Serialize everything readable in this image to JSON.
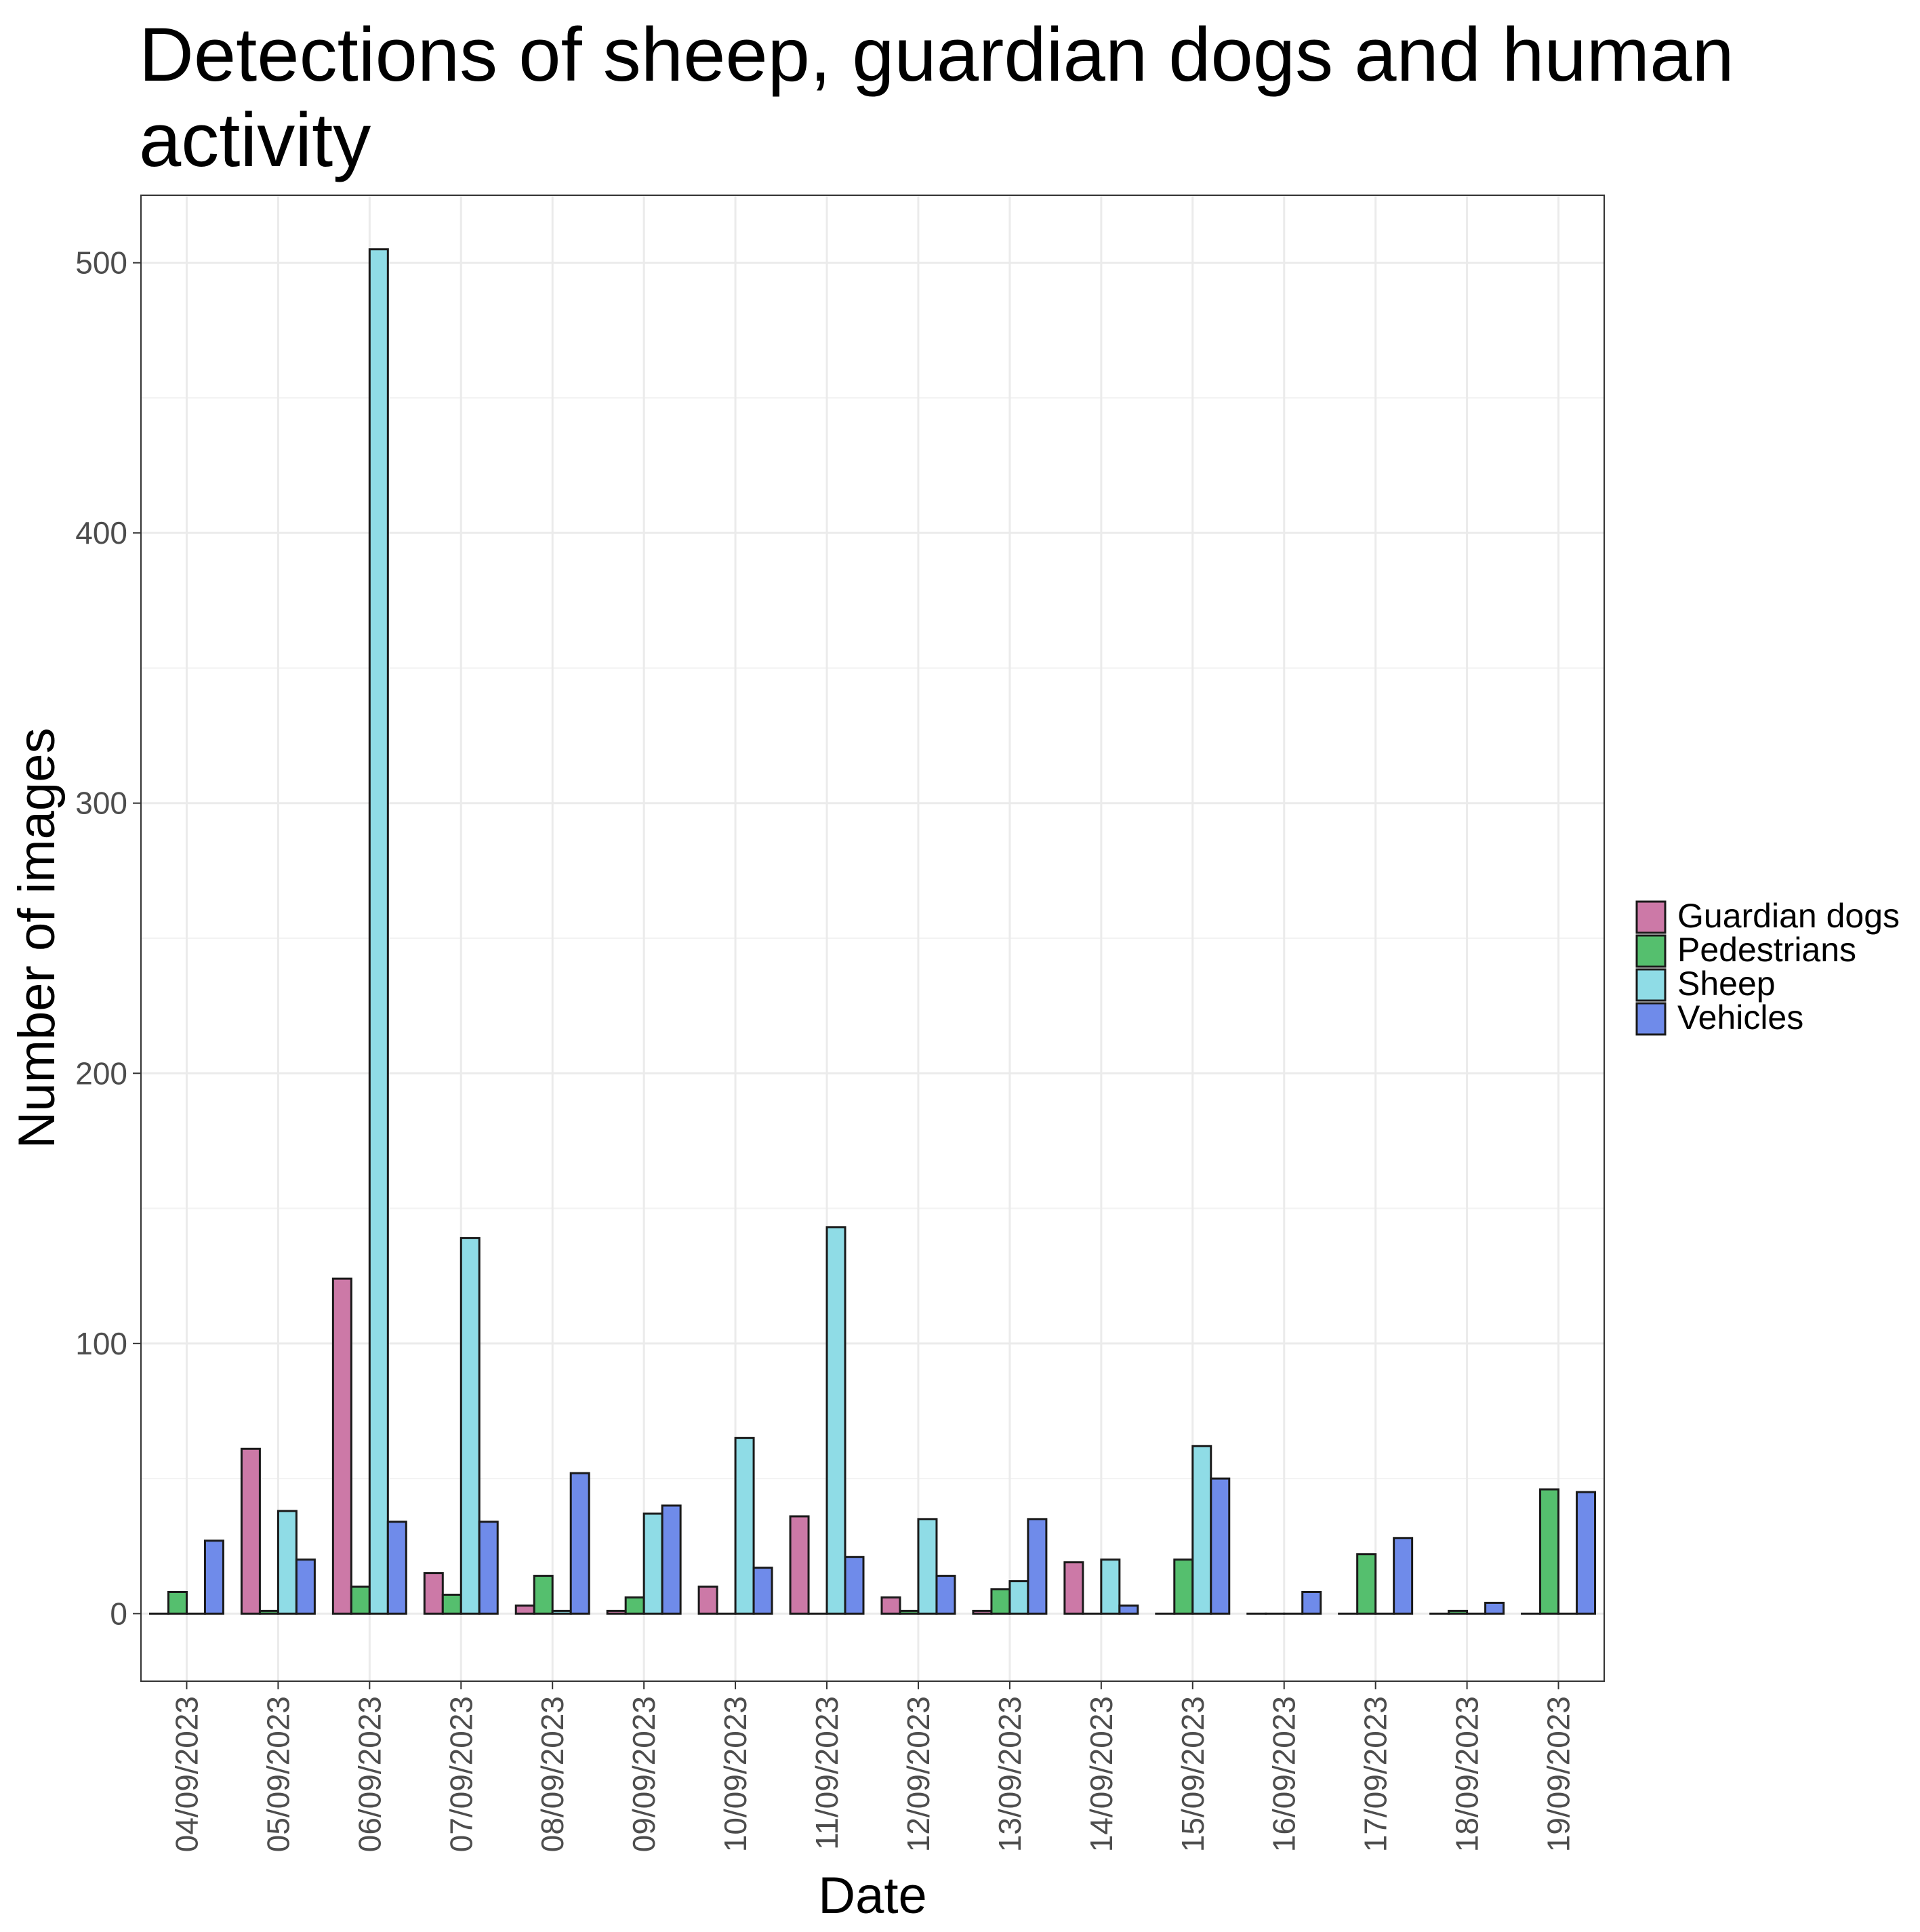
{
  "chart_data": {
    "type": "bar",
    "title": "Detections of sheep, guardian dogs and human activity",
    "xlabel": "Date",
    "ylabel": "Number of images",
    "ylim": [
      -25,
      525
    ],
    "yticks": [
      0,
      100,
      200,
      300,
      400,
      500
    ],
    "grid": true,
    "legend_position": "right",
    "categories": [
      "04/09/2023",
      "05/09/2023",
      "06/09/2023",
      "07/09/2023",
      "08/09/2023",
      "09/09/2023",
      "10/09/2023",
      "11/09/2023",
      "12/09/2023",
      "13/09/2023",
      "14/09/2023",
      "15/09/2023",
      "16/09/2023",
      "17/09/2023",
      "18/09/2023",
      "19/09/2023"
    ],
    "series": [
      {
        "name": "Guardian dogs",
        "color": "#CC79A7",
        "values": [
          0,
          61,
          124,
          15,
          3,
          1,
          10,
          36,
          6,
          1,
          19,
          0,
          0,
          0,
          0,
          0
        ]
      },
      {
        "name": "Pedestrians",
        "color": "#55BF6E",
        "values": [
          8,
          1,
          10,
          7,
          14,
          6,
          0,
          0,
          1,
          9,
          0,
          20,
          0,
          22,
          1,
          46
        ]
      },
      {
        "name": "Sheep",
        "color": "#8FDCE6",
        "values": [
          0,
          38,
          505,
          139,
          1,
          37,
          65,
          143,
          35,
          12,
          20,
          62,
          0,
          0,
          0,
          0
        ]
      },
      {
        "name": "Vehicles",
        "color": "#6F8BEA",
        "values": [
          27,
          20,
          34,
          34,
          52,
          40,
          17,
          21,
          14,
          35,
          3,
          50,
          8,
          28,
          4,
          45
        ]
      }
    ]
  }
}
